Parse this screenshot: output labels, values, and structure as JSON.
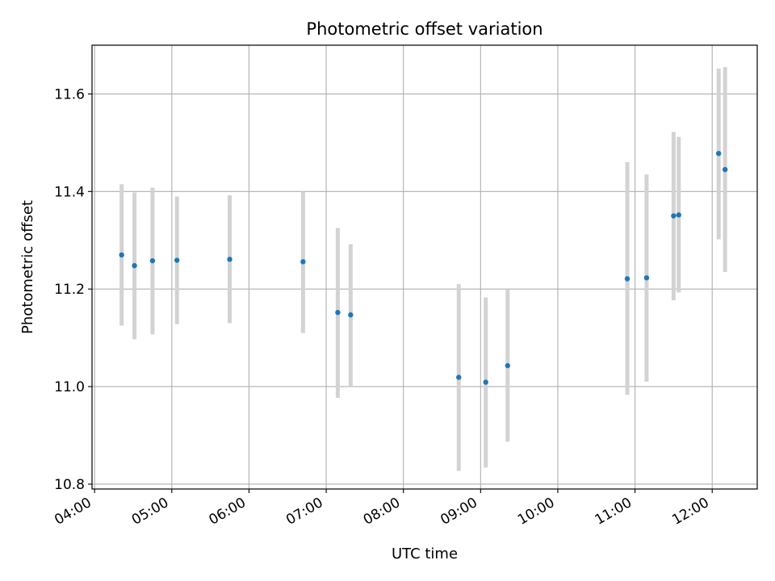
{
  "chart_data": {
    "type": "scatter",
    "title": "Photometric offset variation",
    "xlabel": "UTC time",
    "ylabel": "Photometric offset",
    "x_ticks": [
      "04:00",
      "05:00",
      "06:00",
      "07:00",
      "08:00",
      "09:00",
      "10:00",
      "11:00",
      "12:00"
    ],
    "y_ticks": [
      "10.8",
      "11.0",
      "11.2",
      "11.4",
      "11.6"
    ],
    "xlim": [
      "03:58",
      "12:35"
    ],
    "ylim": [
      10.79,
      11.7
    ],
    "grid": true,
    "point_color": "#1f77b4",
    "errorbar_color": "#d3d3d3",
    "points": [
      {
        "x": "04:21",
        "y": 11.27,
        "err_low": 11.125,
        "err_high": 11.415
      },
      {
        "x": "04:31",
        "y": 11.248,
        "err_low": 11.097,
        "err_high": 11.398
      },
      {
        "x": "04:45",
        "y": 11.258,
        "err_low": 11.107,
        "err_high": 11.408
      },
      {
        "x": "05:04",
        "y": 11.259,
        "err_low": 11.128,
        "err_high": 11.39
      },
      {
        "x": "05:45",
        "y": 11.261,
        "err_low": 11.13,
        "err_high": 11.392
      },
      {
        "x": "06:42",
        "y": 11.256,
        "err_low": 11.11,
        "err_high": 11.4
      },
      {
        "x": "07:09",
        "y": 11.152,
        "err_low": 10.977,
        "err_high": 11.325
      },
      {
        "x": "07:19",
        "y": 11.147,
        "err_low": 11.0,
        "err_high": 11.292
      },
      {
        "x": "08:43",
        "y": 11.019,
        "err_low": 10.827,
        "err_high": 11.21
      },
      {
        "x": "09:04",
        "y": 11.009,
        "err_low": 10.834,
        "err_high": 11.183
      },
      {
        "x": "09:21",
        "y": 11.043,
        "err_low": 10.887,
        "err_high": 11.199
      },
      {
        "x": "10:54",
        "y": 11.221,
        "err_low": 10.983,
        "err_high": 11.46
      },
      {
        "x": "11:09",
        "y": 11.223,
        "err_low": 11.01,
        "err_high": 11.435
      },
      {
        "x": "11:30",
        "y": 11.35,
        "err_low": 11.177,
        "err_high": 11.522
      },
      {
        "x": "11:34",
        "y": 11.352,
        "err_low": 11.193,
        "err_high": 11.512
      },
      {
        "x": "12:05",
        "y": 11.478,
        "err_low": 11.302,
        "err_high": 11.652
      },
      {
        "x": "12:10",
        "y": 11.445,
        "err_low": 11.235,
        "err_high": 11.655
      }
    ]
  }
}
